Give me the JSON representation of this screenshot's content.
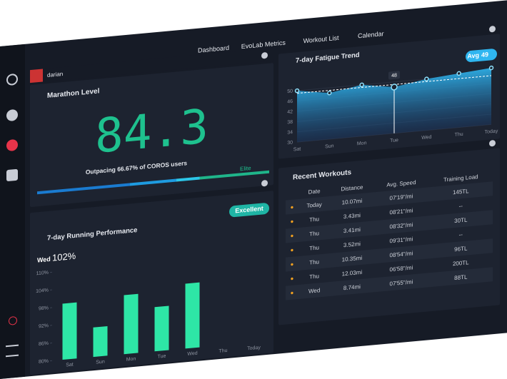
{
  "nav": {
    "tabs": [
      "Dashboard",
      "EvoLab Metrics",
      "Workout List",
      "Calendar"
    ],
    "active": 0
  },
  "user": {
    "name": "darian"
  },
  "marathon_level": {
    "title": "Marathon Level",
    "value": 84.3,
    "caption": "Outpacing 66.67% of COROS users",
    "tier": "Elite"
  },
  "chart_data": [
    {
      "type": "area",
      "title": "7-day Fatigue Trend",
      "categories": [
        "Sat",
        "Sun",
        "Mon",
        "Tue",
        "Wed",
        "Thu",
        "Today"
      ],
      "values": [
        50,
        48,
        50,
        48,
        50,
        51,
        52
      ],
      "color": "#2fb6f0",
      "ylim": [
        30,
        55
      ],
      "yticks": [
        30,
        34,
        38,
        42,
        46,
        50
      ],
      "avg_label": "Avg",
      "avg": 49,
      "highlight": 3
    },
    {
      "type": "bar",
      "title": "7-day Running Performance",
      "badge": "Excellent",
      "categories": [
        "Sat",
        "Sun",
        "Mon",
        "Tue",
        "Wed",
        "Thu",
        "Today"
      ],
      "values": [
        99,
        90,
        100,
        95,
        102,
        null,
        null
      ],
      "value_labels": [
        null,
        null,
        null,
        null,
        "102%",
        null,
        null
      ],
      "color": "#2ee6a6",
      "ylim": [
        80,
        110
      ],
      "highlight": 4,
      "yticks": [
        {
          "value": 80,
          "label": "80%"
        },
        {
          "value": 86,
          "label": "86%"
        },
        {
          "value": 92,
          "label": "92%"
        },
        {
          "value": 98,
          "label": "98%"
        },
        {
          "value": 104,
          "label": "104%"
        },
        {
          "value": 110,
          "label": "110%"
        }
      ]
    }
  ],
  "workouts": {
    "title": "Recent Workouts",
    "columns": [
      "Date",
      "Distance",
      "Avg. Speed",
      "Training Load"
    ],
    "rows": [
      [
        "Today",
        "10.07mi",
        "07'19\"/mi",
        "145TL"
      ],
      [
        "Thu",
        "3.43mi",
        "08'21\"/mi",
        "--"
      ],
      [
        "Thu",
        "3.41mi",
        "08'32\"/mi",
        "30TL"
      ],
      [
        "Thu",
        "3.52mi",
        "09'31\"/mi",
        "--"
      ],
      [
        "Thu",
        "10.35mi",
        "08'54\"/mi",
        "96TL"
      ],
      [
        "Thu",
        "12.03mi",
        "06'58\"/mi",
        "200TL"
      ],
      [
        "Wed",
        "8.74mi",
        "07'55\"/mi",
        "88TL"
      ]
    ]
  }
}
